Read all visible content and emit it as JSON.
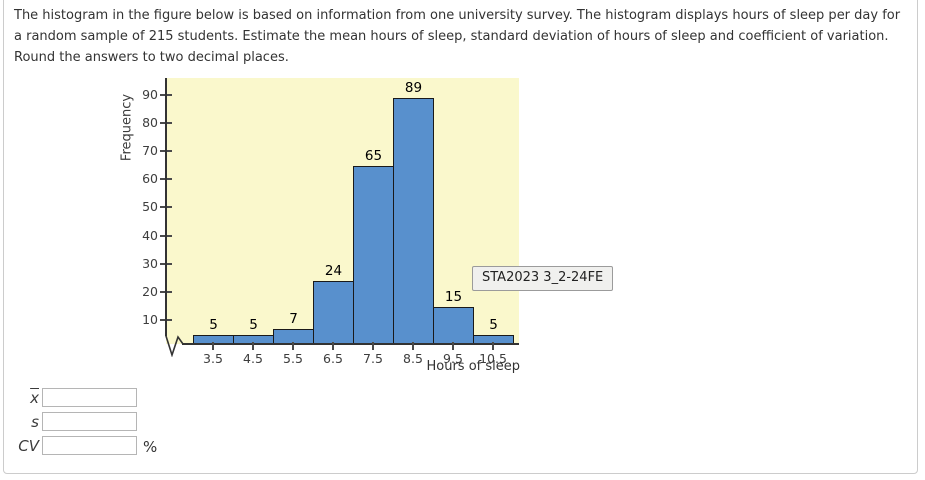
{
  "problem": {
    "text": "The histogram in the figure below is based on information from one university survey. The histogram displays hours of sleep per day for a random sample of 215 students. Estimate the mean hours of sleep, standard deviation of hours of sleep and coefficient of variation. Round the answers to two decimal places."
  },
  "chart_data": {
    "type": "bar",
    "title": "",
    "xlabel": "Hours of sleep",
    "ylabel": "Frequency",
    "categories": [
      3.5,
      4.5,
      5.5,
      6.5,
      7.5,
      8.5,
      9.5,
      10.5
    ],
    "values": [
      5,
      5,
      7,
      24,
      65,
      89,
      15,
      5
    ],
    "x_tick_labels": [
      "3.5",
      "4.5",
      "5.5",
      "6.5",
      "7.5",
      "8.5",
      "9.5",
      "10.5"
    ],
    "y_ticks": [
      10,
      20,
      30,
      40,
      50,
      60,
      70,
      80,
      90
    ],
    "ylim": [
      0,
      95
    ],
    "grid": false,
    "legend": false,
    "axis_break_at_origin": true,
    "plot_bg": "#FAF8CC",
    "bar_color": "#5890CD",
    "bar_border_color": "#1A1A1A",
    "annotation": "STA2023 3_2-24FE"
  },
  "answers": {
    "mean_label": "x",
    "mean_value": "",
    "s_label": "s",
    "s_value": "",
    "cv_label": "CV",
    "cv_value": "",
    "percent_label": "%"
  }
}
